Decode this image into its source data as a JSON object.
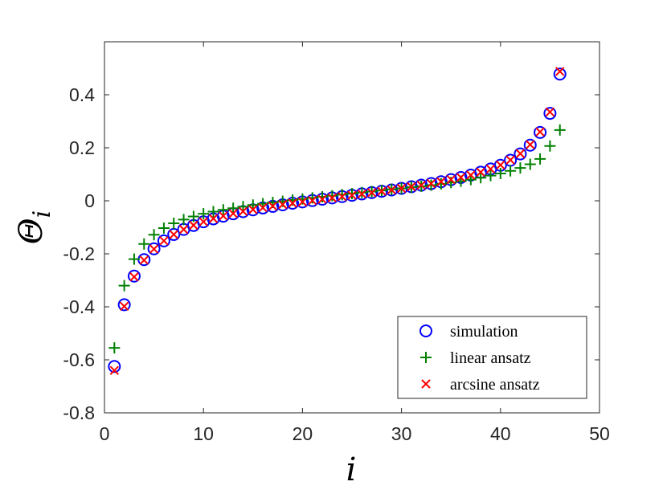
{
  "chart_data": {
    "type": "scatter",
    "title": "",
    "xlabel": "i",
    "ylabel_main": "Θ",
    "ylabel_sub": "i",
    "xlim": [
      0,
      50
    ],
    "ylim": [
      -0.8,
      0.6
    ],
    "xticks": [
      0,
      10,
      20,
      30,
      40,
      50
    ],
    "xtick_labels": [
      "0",
      "10",
      "20",
      "30",
      "40",
      "50"
    ],
    "yticks": [
      -0.8,
      -0.6,
      -0.4,
      -0.2,
      0,
      0.2,
      0.4
    ],
    "ytick_labels": [
      "-0.8",
      "-0.6",
      "-0.4",
      "-0.2",
      "0",
      "0.2",
      "0.4"
    ],
    "grid": false,
    "legend_position": "bottom-right",
    "colors": {
      "simulation": "#0000ff",
      "linear": "#008000",
      "arcsine": "#ff0000",
      "axis": "#262626"
    },
    "x": [
      1,
      2,
      3,
      4,
      5,
      6,
      7,
      8,
      9,
      10,
      11,
      12,
      13,
      14,
      15,
      16,
      17,
      18,
      19,
      20,
      21,
      22,
      23,
      24,
      25,
      26,
      27,
      28,
      29,
      30,
      31,
      32,
      33,
      34,
      35,
      36,
      37,
      38,
      39,
      40,
      41,
      42,
      43,
      44,
      45,
      46
    ],
    "series": [
      {
        "name": "simulation",
        "marker": "circle",
        "values": [
          -0.625,
          -0.392,
          -0.284,
          -0.222,
          -0.181,
          -0.151,
          -0.127,
          -0.108,
          -0.093,
          -0.079,
          -0.068,
          -0.058,
          -0.049,
          -0.041,
          -0.034,
          -0.027,
          -0.021,
          -0.015,
          -0.009,
          -0.004,
          0.001,
          0.006,
          0.011,
          0.016,
          0.021,
          0.026,
          0.031,
          0.036,
          0.041,
          0.047,
          0.053,
          0.059,
          0.065,
          0.072,
          0.08,
          0.088,
          0.097,
          0.108,
          0.12,
          0.134,
          0.153,
          0.177,
          0.21,
          0.258,
          0.33,
          0.478
        ]
      },
      {
        "name": "linear ansatz",
        "marker": "plus",
        "values": [
          -0.555,
          -0.32,
          -0.22,
          -0.163,
          -0.128,
          -0.103,
          -0.085,
          -0.071,
          -0.059,
          -0.049,
          -0.041,
          -0.034,
          -0.028,
          -0.022,
          -0.016,
          -0.011,
          -0.006,
          -0.002,
          0.003,
          0.007,
          0.011,
          0.015,
          0.019,
          0.023,
          0.027,
          0.031,
          0.035,
          0.039,
          0.043,
          0.047,
          0.051,
          0.055,
          0.059,
          0.064,
          0.069,
          0.074,
          0.08,
          0.087,
          0.095,
          0.103,
          0.113,
          0.124,
          0.138,
          0.158,
          0.207,
          0.267
        ]
      },
      {
        "name": "arcsine ansatz",
        "marker": "cross",
        "values": [
          -0.64,
          -0.398,
          -0.287,
          -0.224,
          -0.182,
          -0.151,
          -0.127,
          -0.108,
          -0.092,
          -0.079,
          -0.067,
          -0.057,
          -0.048,
          -0.04,
          -0.033,
          -0.026,
          -0.02,
          -0.014,
          -0.009,
          -0.004,
          0.001,
          0.006,
          0.011,
          0.016,
          0.021,
          0.026,
          0.031,
          0.036,
          0.041,
          0.047,
          0.053,
          0.059,
          0.065,
          0.072,
          0.08,
          0.088,
          0.097,
          0.108,
          0.12,
          0.135,
          0.154,
          0.178,
          0.212,
          0.26,
          0.335,
          0.488
        ]
      }
    ]
  }
}
